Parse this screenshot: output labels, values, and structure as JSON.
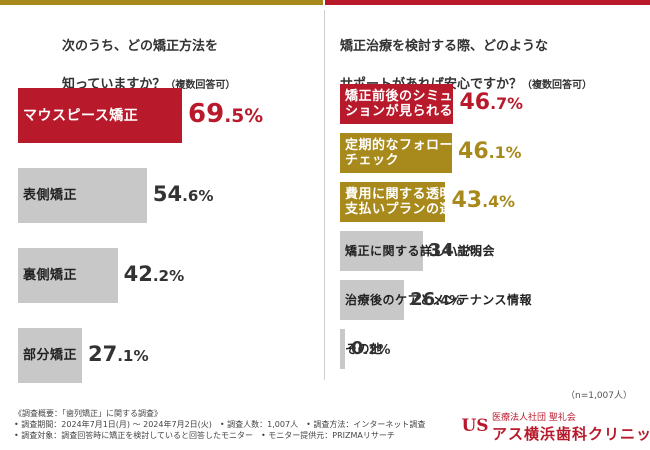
{
  "question_left": {
    "line1": "次のうち、どの矯正方法を",
    "line2": "知っていますか？",
    "paren": "（複数回答可）"
  },
  "question_right": {
    "line1": "矯正治療を検討する際、どのような",
    "line2": "サポートがあれば安心ですか？",
    "paren": "（複数回答可）"
  },
  "n_note": "（n=1,007人）",
  "footer": {
    "line1": "《調査概要：「歯列矯正」に関する調査》",
    "line2": "• 調査期間：2024年7月1日(月) 〜 2024年7月2日(火)　• 調査人数：1,007人　• 調査方法：インターネット調査",
    "line3": "• 調査対象：調査回答時に矯正を検討していると回答したモニター　• モニター提供元：PRIZMAリサーチ"
  },
  "logo": {
    "mark": "US",
    "sub": "医療法人社団 聖礼会",
    "name": "アス横浜歯科クリニック"
  },
  "colors": {
    "red": "#b81a2c",
    "gold": "#a8891b",
    "gray": "#c8c8c8",
    "value_dark": "#333333"
  },
  "chart_data": [
    {
      "type": "bar",
      "orientation": "horizontal",
      "title": "次のうち、どの矯正方法を知っていますか？（複数回答可）",
      "categories": [
        "マウスピース矯正",
        "表側矯正",
        "裏側矯正",
        "部分矯正"
      ],
      "values": [
        69.5,
        54.6,
        42.2,
        27.1
      ],
      "unit": "%",
      "xlim": [
        0,
        100
      ]
    },
    {
      "type": "bar",
      "orientation": "horizontal",
      "title": "矯正治療を検討する際、どのようなサポートがあれば安心ですか？（複数回答可）",
      "categories": [
        "矯正前後のシミュレーションが見られること",
        "定期的なフォローアップとチェック",
        "費用に関する透明性と支払いプランの選択肢",
        "矯正に関する詳しい説明会",
        "治療後のケアとメンテナンス情報",
        "その他"
      ],
      "display_labels": [
        "矯正前後のシミュレー\nションが見られること",
        "定期的なフォローアップと\nチェック",
        "費用に関する透明性と\n支払いプランの選択肢",
        "矯正に関する詳しい説明会",
        "治療後のケアとメンテナンス情報",
        "その他"
      ],
      "values": [
        46.7,
        46.1,
        43.4,
        34.1,
        26.4,
        0.2
      ],
      "unit": "%",
      "xlim": [
        0,
        100
      ]
    }
  ]
}
